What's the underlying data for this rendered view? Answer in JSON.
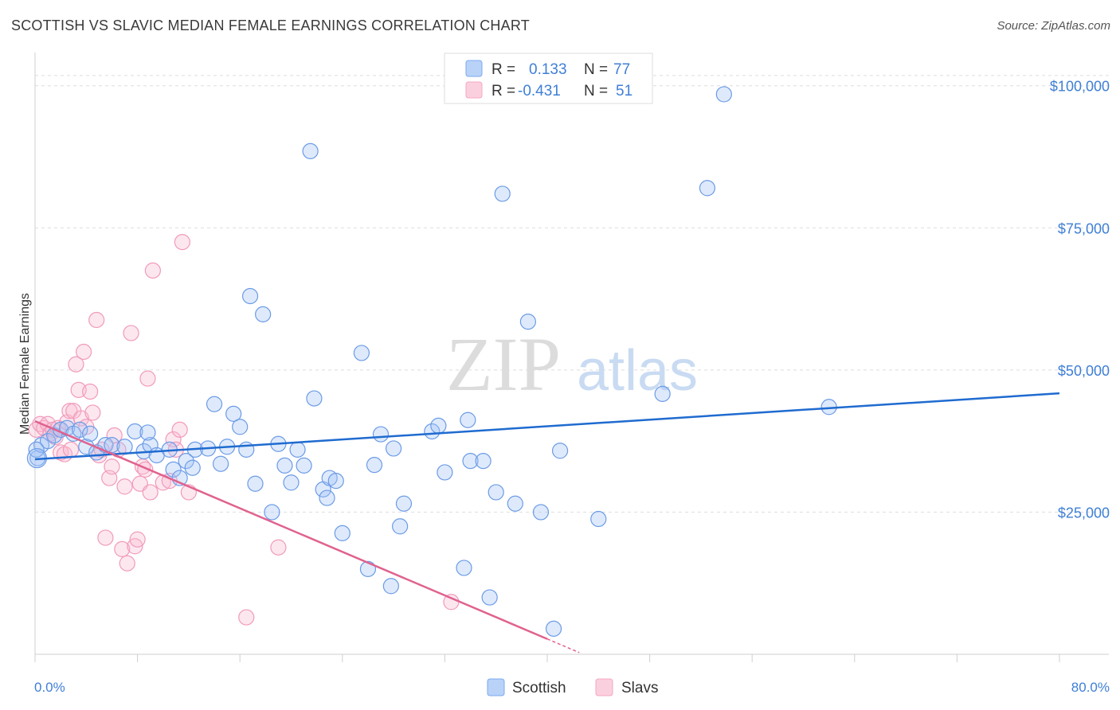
{
  "header": {
    "title": "SCOTTISH VS SLAVIC MEDIAN FEMALE EARNINGS CORRELATION CHART",
    "source": "Source: ZipAtlas.com"
  },
  "watermark": {
    "zip": "ZIP",
    "atlas": "atlas"
  },
  "legend_top": {
    "rows": [
      {
        "r_label": "R =",
        "r_value": "0.133",
        "n_label": "N =",
        "n_value": "77",
        "color": "#7aaaf0"
      },
      {
        "r_label": "R =",
        "r_value": "-0.431",
        "n_label": "N =",
        "n_value": "51",
        "color": "#f4a7c0"
      }
    ]
  },
  "colors": {
    "scottish": "#6c9be6",
    "slavs": "#f19abb",
    "scottish_line": "#1f6bd0",
    "slavs_line": "#e0628f",
    "value_text": "#3f7fd6"
  },
  "chart_data": {
    "type": "scatter",
    "ylabel": "Median Female Earnings",
    "xlabel": "",
    "xlim": [
      0,
      80
    ],
    "ylim": [
      0,
      105000
    ],
    "x_tick_labels": [
      "0.0%",
      "80.0%"
    ],
    "y_ticks": [
      25000,
      50000,
      75000,
      100000
    ],
    "y_tick_labels": [
      "$25,000",
      "$50,000",
      "$75,000",
      "$100,000"
    ],
    "grid": true,
    "legend_position": "bottom-center",
    "series": [
      {
        "name": "Scottish",
        "trend": {
          "x": [
            0,
            80
          ],
          "y": [
            34300,
            45900
          ]
        },
        "points": [
          [
            0.2,
            34500
          ],
          [
            0.5,
            36800
          ],
          [
            1.0,
            37500
          ],
          [
            1.5,
            38500
          ],
          [
            2.0,
            39500
          ],
          [
            2.5,
            39800
          ],
          [
            3.0,
            38800
          ],
          [
            3.5,
            39500
          ],
          [
            4.0,
            36500
          ],
          [
            4.3,
            38800
          ],
          [
            4.8,
            35500
          ],
          [
            5.5,
            36800
          ],
          [
            6.0,
            36800
          ],
          [
            7.0,
            36500
          ],
          [
            7.8,
            39200
          ],
          [
            8.5,
            35700
          ],
          [
            9.0,
            36800
          ],
          [
            8.8,
            39000
          ],
          [
            9.5,
            35000
          ],
          [
            10.5,
            36000
          ],
          [
            10.8,
            32500
          ],
          [
            11.3,
            31000
          ],
          [
            11.8,
            34000
          ],
          [
            12.3,
            32800
          ],
          [
            12.5,
            36000
          ],
          [
            13.5,
            36200
          ],
          [
            14.0,
            44000
          ],
          [
            14.5,
            33500
          ],
          [
            15.0,
            36500
          ],
          [
            15.5,
            42300
          ],
          [
            16.0,
            40000
          ],
          [
            16.5,
            36000
          ],
          [
            16.8,
            63000
          ],
          [
            17.2,
            30000
          ],
          [
            17.8,
            59800
          ],
          [
            18.5,
            25000
          ],
          [
            19.0,
            37000
          ],
          [
            19.5,
            33200
          ],
          [
            20.0,
            30200
          ],
          [
            20.5,
            36000
          ],
          [
            21.0,
            33200
          ],
          [
            21.5,
            88500
          ],
          [
            21.8,
            45000
          ],
          [
            22.5,
            29000
          ],
          [
            22.8,
            27500
          ],
          [
            23.0,
            31000
          ],
          [
            23.5,
            30500
          ],
          [
            24.0,
            21300
          ],
          [
            25.5,
            53000
          ],
          [
            26.0,
            15000
          ],
          [
            26.5,
            33300
          ],
          [
            27.0,
            38700
          ],
          [
            27.8,
            12000
          ],
          [
            28.0,
            36200
          ],
          [
            28.5,
            22500
          ],
          [
            28.8,
            26500
          ],
          [
            31.0,
            39200
          ],
          [
            31.5,
            40200
          ],
          [
            32.0,
            32000
          ],
          [
            33.5,
            15200
          ],
          [
            33.8,
            41200
          ],
          [
            34.0,
            34000
          ],
          [
            35.0,
            34000
          ],
          [
            35.5,
            10000
          ],
          [
            36.0,
            28500
          ],
          [
            36.5,
            81000
          ],
          [
            37.5,
            26500
          ],
          [
            38.5,
            58500
          ],
          [
            39.5,
            25000
          ],
          [
            40.5,
            4500
          ],
          [
            41.0,
            35800
          ],
          [
            44.0,
            23800
          ],
          [
            49.0,
            45800
          ],
          [
            52.5,
            82000
          ],
          [
            53.8,
            98500
          ],
          [
            62.0,
            43500
          ],
          [
            0.1,
            36000
          ]
        ]
      },
      {
        "name": "Slavs",
        "trend": {
          "x": [
            0,
            40
          ],
          "y": [
            41000,
            2700
          ]
        },
        "trend_dashed": {
          "x": [
            40,
            42.5
          ],
          "y": [
            2700,
            300
          ]
        },
        "points": [
          [
            0.1,
            39500
          ],
          [
            0.4,
            40500
          ],
          [
            0.7,
            39800
          ],
          [
            1.0,
            40500
          ],
          [
            1.2,
            38800
          ],
          [
            1.4,
            39500
          ],
          [
            1.6,
            38200
          ],
          [
            1.8,
            39800
          ],
          [
            2.0,
            35500
          ],
          [
            2.3,
            35200
          ],
          [
            2.5,
            40800
          ],
          [
            2.7,
            42800
          ],
          [
            2.8,
            36000
          ],
          [
            3.0,
            42800
          ],
          [
            3.2,
            51000
          ],
          [
            3.4,
            46500
          ],
          [
            3.6,
            41500
          ],
          [
            3.8,
            53200
          ],
          [
            4.0,
            40000
          ],
          [
            4.3,
            46200
          ],
          [
            4.5,
            42500
          ],
          [
            4.8,
            58800
          ],
          [
            5.0,
            35000
          ],
          [
            5.2,
            36000
          ],
          [
            5.5,
            20500
          ],
          [
            5.8,
            31000
          ],
          [
            6.0,
            33000
          ],
          [
            6.2,
            38500
          ],
          [
            6.5,
            36000
          ],
          [
            6.8,
            18500
          ],
          [
            7.0,
            29500
          ],
          [
            7.2,
            16000
          ],
          [
            7.5,
            56500
          ],
          [
            7.8,
            19000
          ],
          [
            8.0,
            20200
          ],
          [
            8.2,
            30000
          ],
          [
            8.4,
            33000
          ],
          [
            8.6,
            32500
          ],
          [
            8.8,
            48500
          ],
          [
            9.0,
            28500
          ],
          [
            9.2,
            67500
          ],
          [
            10.0,
            30200
          ],
          [
            10.5,
            30500
          ],
          [
            10.8,
            37800
          ],
          [
            11.0,
            36000
          ],
          [
            11.3,
            39500
          ],
          [
            11.5,
            72500
          ],
          [
            12.0,
            28500
          ],
          [
            16.5,
            6500
          ],
          [
            19.0,
            18800
          ],
          [
            32.5,
            9200
          ]
        ]
      }
    ]
  }
}
